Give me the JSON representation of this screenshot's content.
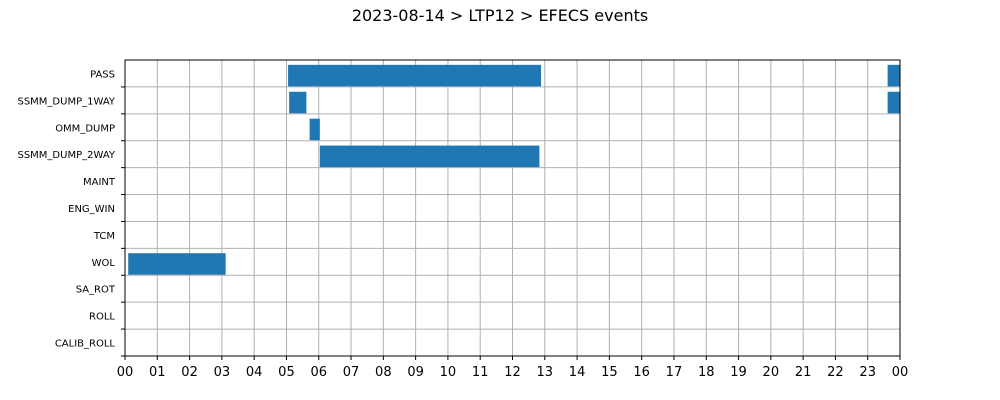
{
  "chart_data": {
    "type": "gantt",
    "title": "2023-08-14 > LTP12 > EFECS events",
    "xlabel": "",
    "ylabel": "",
    "x_unit": "hours",
    "xlim": [
      0,
      24
    ],
    "x_ticks": [
      "00",
      "01",
      "02",
      "03",
      "04",
      "05",
      "06",
      "07",
      "08",
      "09",
      "10",
      "11",
      "12",
      "13",
      "14",
      "15",
      "16",
      "17",
      "18",
      "19",
      "20",
      "21",
      "22",
      "23",
      "00"
    ],
    "categories": [
      "PASS",
      "SSMM_DUMP_1WAY",
      "OMM_DUMP",
      "SSMM_DUMP_2WAY",
      "MAINT",
      "ENG_WIN",
      "TCM",
      "WOL",
      "SA_ROT",
      "ROLL",
      "CALIB_ROLL"
    ],
    "grid": true,
    "bar_color": "#1f77b4",
    "events": [
      {
        "category": "PASS",
        "start": "05:03",
        "end": "12:53"
      },
      {
        "category": "PASS",
        "start": "23:37",
        "end": "24:00"
      },
      {
        "category": "SSMM_DUMP_1WAY",
        "start": "05:05",
        "end": "05:37"
      },
      {
        "category": "SSMM_DUMP_1WAY",
        "start": "23:37",
        "end": "24:00"
      },
      {
        "category": "OMM_DUMP",
        "start": "05:43",
        "end": "06:02"
      },
      {
        "category": "SSMM_DUMP_2WAY",
        "start": "06:02",
        "end": "12:50"
      },
      {
        "category": "WOL",
        "start": "00:06",
        "end": "03:07"
      }
    ]
  }
}
